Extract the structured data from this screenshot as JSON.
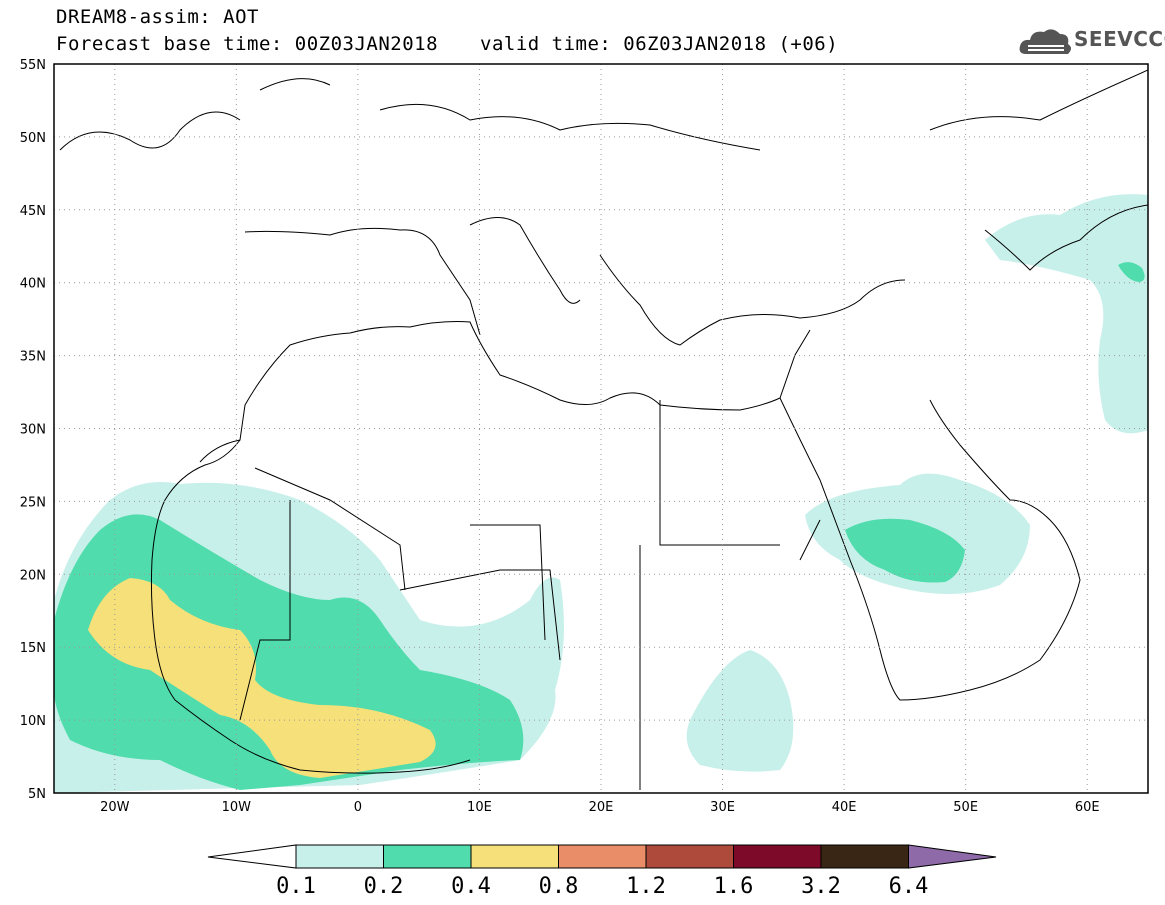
{
  "header": {
    "line1": "DREAM8-assim: AOT",
    "line2": "Forecast base time: 00Z03JAN2018",
    "line3": "valid time: 06Z03JAN2018 (+06)",
    "logo_text": "SEEVCCC",
    "logo_icon": "cloud-icon"
  },
  "map": {
    "variable": "AOT",
    "projection": "lat-lon",
    "lon_range": [
      -25,
      65
    ],
    "lat_range": [
      5,
      55
    ],
    "lat_ticks": [
      "55N",
      "50N",
      "45N",
      "40N",
      "35N",
      "30N",
      "25N",
      "20N",
      "15N",
      "10N",
      "5N"
    ],
    "lon_ticks": [
      "20W",
      "10W",
      "0",
      "10E",
      "20E",
      "30E",
      "40E",
      "50E",
      "60E"
    ],
    "grid": "dotted",
    "colors": {
      "level_01_02": "#c8f0ea",
      "level_02_04": "#50dcac",
      "level_04_08": "#f5e07a",
      "level_08_12": "#e98c68",
      "level_12_16": "#ad4a3c",
      "level_16_32": "#7d0a28",
      "level_32_64": "#3a2614",
      "level_over_64": "#8e6aa8"
    }
  },
  "colorbar": {
    "labels": [
      "0.1",
      "0.2",
      "0.4",
      "0.8",
      "1.2",
      "1.6",
      "3.2",
      "6.4"
    ]
  }
}
